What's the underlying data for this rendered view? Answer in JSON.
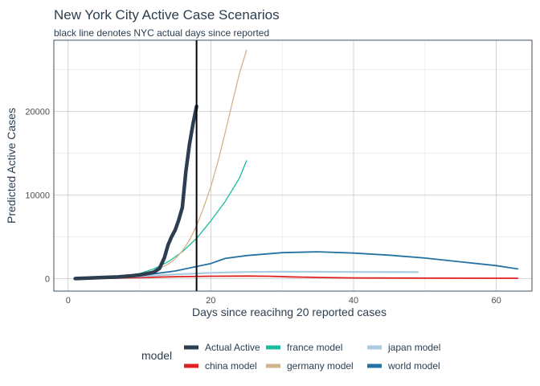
{
  "chart_data": {
    "type": "line",
    "title": "New York City Active Case Scenarios",
    "subtitle": "black line denotes NYC actual days since reported",
    "xlabel": "Days since reacihng 20 reported cases",
    "ylabel": "Predicted Active Cases",
    "xlim": [
      -2,
      65
    ],
    "ylim": [
      -1500,
      28500
    ],
    "xticks": [
      0,
      20,
      40,
      60
    ],
    "yticks": [
      0,
      10000,
      20000
    ],
    "ytick_labels": [
      "0",
      "10000",
      "20000"
    ],
    "grid": true,
    "legend_position": "bottom",
    "legend_title": "model",
    "vline_x": 18,
    "series": [
      {
        "name": "Actual Active",
        "color": "#2c3e50",
        "width": 4.5,
        "points": [
          [
            1,
            0
          ],
          [
            3,
            60
          ],
          [
            5,
            130
          ],
          [
            7,
            190
          ],
          [
            9,
            340
          ],
          [
            10,
            430
          ],
          [
            11,
            580
          ],
          [
            12,
            760
          ],
          [
            12.8,
            1200
          ],
          [
            13.5,
            2500
          ],
          [
            14,
            4000
          ],
          [
            14.5,
            5000
          ],
          [
            15,
            5800
          ],
          [
            15.5,
            7000
          ],
          [
            16,
            8500
          ],
          [
            16.5,
            12800
          ],
          [
            17,
            16000
          ],
          [
            17.5,
            18500
          ],
          [
            18,
            20600
          ]
        ]
      },
      {
        "name": "china model",
        "color": "#e02020",
        "width": 1.8,
        "points": [
          [
            1,
            0
          ],
          [
            5,
            30
          ],
          [
            10,
            120
          ],
          [
            15,
            220
          ],
          [
            20,
            280
          ],
          [
            25,
            300
          ],
          [
            28,
            280
          ],
          [
            31,
            200
          ],
          [
            35,
            130
          ],
          [
            40,
            80
          ],
          [
            50,
            50
          ],
          [
            63,
            40
          ]
        ]
      },
      {
        "name": "france model",
        "color": "#1abc9c",
        "width": 1.3,
        "points": [
          [
            1,
            0
          ],
          [
            4,
            70
          ],
          [
            6,
            160
          ],
          [
            8,
            300
          ],
          [
            10,
            600
          ],
          [
            12,
            1150
          ],
          [
            14,
            2000
          ],
          [
            16,
            3200
          ],
          [
            18,
            4800
          ],
          [
            20,
            6900
          ],
          [
            22,
            9200
          ],
          [
            24,
            12000
          ],
          [
            25,
            14100
          ]
        ]
      },
      {
        "name": "germany model",
        "color": "#d2b48c",
        "width": 1.3,
        "points": [
          [
            1,
            0
          ],
          [
            4,
            60
          ],
          [
            6,
            140
          ],
          [
            8,
            260
          ],
          [
            10,
            480
          ],
          [
            12,
            920
          ],
          [
            14,
            1700
          ],
          [
            15,
            2350
          ],
          [
            16,
            3300
          ],
          [
            17,
            4600
          ],
          [
            18,
            6300
          ],
          [
            19,
            8500
          ],
          [
            20,
            11000
          ],
          [
            21,
            14000
          ],
          [
            22,
            17400
          ],
          [
            23,
            21000
          ],
          [
            24,
            24500
          ],
          [
            25,
            27300
          ]
        ]
      },
      {
        "name": "japan model",
        "color": "#a9cce3",
        "width": 2.2,
        "points": [
          [
            1,
            0
          ],
          [
            5,
            80
          ],
          [
            10,
            250
          ],
          [
            15,
            500
          ],
          [
            20,
            680
          ],
          [
            25,
            790
          ],
          [
            30,
            820
          ],
          [
            35,
            810
          ],
          [
            40,
            790
          ],
          [
            45,
            780
          ],
          [
            49,
            770
          ]
        ]
      },
      {
        "name": "world model",
        "color": "#2471a3",
        "width": 1.8,
        "points": [
          [
            1,
            0
          ],
          [
            5,
            90
          ],
          [
            10,
            350
          ],
          [
            15,
            900
          ],
          [
            20,
            1800
          ],
          [
            22,
            2400
          ],
          [
            25,
            2750
          ],
          [
            30,
            3100
          ],
          [
            35,
            3200
          ],
          [
            40,
            3050
          ],
          [
            45,
            2800
          ],
          [
            50,
            2450
          ],
          [
            55,
            2000
          ],
          [
            60,
            1550
          ],
          [
            63,
            1150
          ]
        ]
      }
    ]
  }
}
